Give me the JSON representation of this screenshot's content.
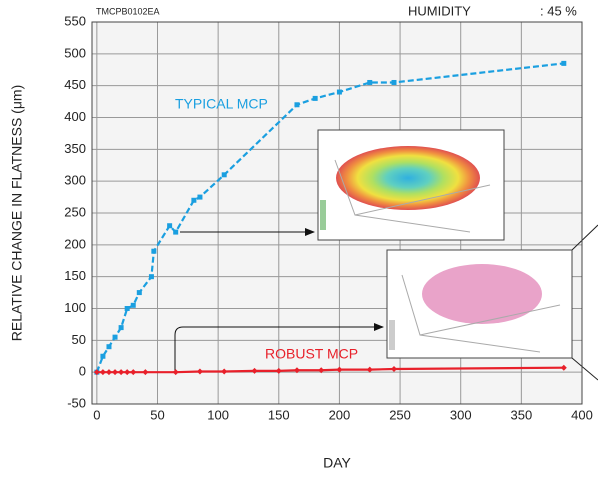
{
  "chart_data": {
    "type": "line",
    "code": "TMCPB0102EA",
    "condition_label": "HUMIDITY",
    "condition_value": ": 45 %",
    "xlabel": "DAY",
    "ylabel": "RELATIVE CHANGE IN FLATNESS (μm)",
    "xlim": [
      -4,
      400
    ],
    "xticks": [
      0,
      50,
      100,
      150,
      200,
      250,
      300,
      350,
      400
    ],
    "ylim": [
      -50,
      550
    ],
    "yticks": [
      -50,
      0,
      50,
      100,
      150,
      200,
      250,
      300,
      350,
      400,
      450,
      500,
      550
    ],
    "grid": true,
    "series": [
      {
        "name": "TYPICAL MCP",
        "color": "#1a9fe0",
        "line_style": "dashed",
        "marker": "square",
        "x": [
          0,
          5,
          10,
          15,
          20,
          25,
          30,
          35,
          45,
          47,
          60,
          65,
          80,
          85,
          105,
          165,
          180,
          200,
          225,
          245,
          385
        ],
        "values": [
          0,
          25,
          40,
          55,
          70,
          100,
          105,
          125,
          150,
          190,
          230,
          220,
          270,
          275,
          310,
          420,
          430,
          440,
          455,
          455,
          485
        ]
      },
      {
        "name": "ROBUST MCP",
        "color": "#e8202a",
        "line_style": "solid",
        "marker": "diamond",
        "x": [
          0,
          5,
          10,
          15,
          20,
          25,
          30,
          40,
          65,
          85,
          105,
          130,
          150,
          165,
          185,
          200,
          225,
          245,
          385
        ],
        "values": [
          0,
          0,
          0,
          0,
          0,
          0,
          0,
          0,
          0,
          1,
          1,
          2,
          2,
          3,
          3,
          4,
          4,
          5,
          7
        ]
      }
    ]
  }
}
